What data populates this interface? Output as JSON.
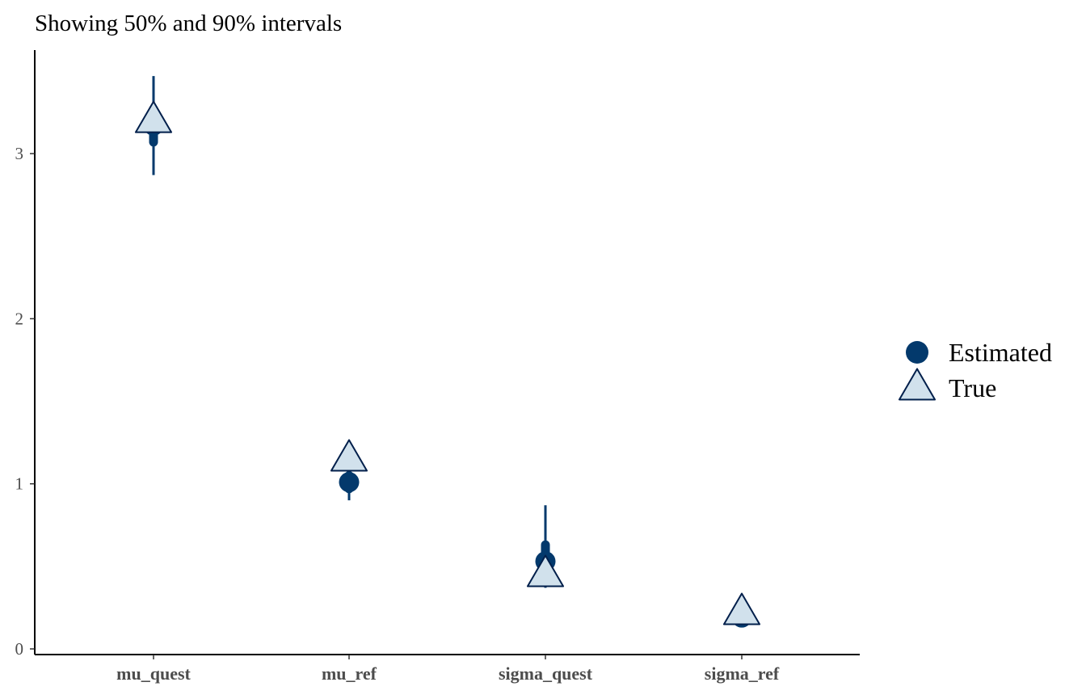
{
  "chart_data": {
    "type": "scatter",
    "title": "Showing 50% and 90% intervals",
    "xlabel": "",
    "ylabel": "",
    "categories": [
      "mu_quest",
      "mu_ref",
      "sigma_quest",
      "sigma_ref"
    ],
    "y_ticks": [
      "0",
      "1",
      "2",
      "3"
    ],
    "ylim": [
      -0.03,
      3.62
    ],
    "grid": false,
    "legend": {
      "placement": "right",
      "entries": [
        {
          "label": "Estimated",
          "shape": "circle",
          "color": "#03396c"
        },
        {
          "label": "True",
          "shape": "triangle",
          "fill": "#d1e1ec",
          "stroke": "#011f4b"
        }
      ]
    },
    "estimated": [
      {
        "category": "mu_quest",
        "value": 3.17,
        "inner": [
          3.07,
          3.27
        ],
        "outer": [
          2.87,
          3.47
        ]
      },
      {
        "category": "mu_ref",
        "value": 1.01,
        "inner": [
          0.97,
          1.05
        ],
        "outer": [
          0.9,
          1.12
        ]
      },
      {
        "category": "sigma_quest",
        "value": 0.53,
        "inner": [
          0.46,
          0.63
        ],
        "outer": [
          0.37,
          0.87
        ]
      },
      {
        "category": "sigma_ref",
        "value": 0.19,
        "inner": [
          0.17,
          0.22
        ],
        "outer": [
          0.15,
          0.31
        ]
      }
    ],
    "true_values": [
      {
        "category": "mu_quest",
        "value": 3.2
      },
      {
        "category": "mu_ref",
        "value": 1.15
      },
      {
        "category": "sigma_quest",
        "value": 0.45
      },
      {
        "category": "sigma_ref",
        "value": 0.22
      }
    ],
    "colors": {
      "estimated": "#03396c",
      "true_fill": "#d1e1ec",
      "true_stroke": "#011f4b",
      "axis": "#000000"
    }
  }
}
